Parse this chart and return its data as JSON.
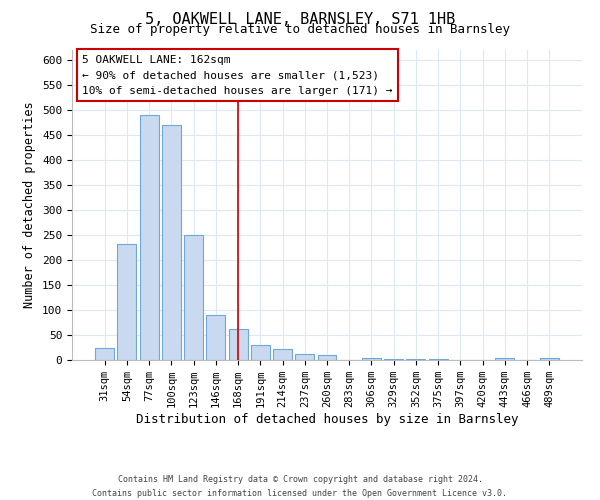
{
  "title": "5, OAKWELL LANE, BARNSLEY, S71 1HB",
  "subtitle": "Size of property relative to detached houses in Barnsley",
  "xlabel": "Distribution of detached houses by size in Barnsley",
  "ylabel": "Number of detached properties",
  "bar_labels": [
    "31sqm",
    "54sqm",
    "77sqm",
    "100sqm",
    "123sqm",
    "146sqm",
    "168sqm",
    "191sqm",
    "214sqm",
    "237sqm",
    "260sqm",
    "283sqm",
    "306sqm",
    "329sqm",
    "352sqm",
    "375sqm",
    "397sqm",
    "420sqm",
    "443sqm",
    "466sqm",
    "489sqm"
  ],
  "bar_values": [
    25,
    232,
    490,
    470,
    250,
    90,
    63,
    30,
    22,
    13,
    10,
    0,
    5,
    2,
    2,
    2,
    0,
    0,
    5,
    0,
    5
  ],
  "bar_color": "#c9d9f0",
  "bar_edge_color": "#6fa8d6",
  "vline_x_index": 6,
  "vline_color": "#cc0000",
  "annotation_title": "5 OAKWELL LANE: 162sqm",
  "annotation_line1": "← 90% of detached houses are smaller (1,523)",
  "annotation_line2": "10% of semi-detached houses are larger (171) →",
  "annotation_box_color": "white",
  "annotation_box_edge": "#cc0000",
  "ylim": [
    0,
    620
  ],
  "yticks": [
    0,
    50,
    100,
    150,
    200,
    250,
    300,
    350,
    400,
    450,
    500,
    550,
    600
  ],
  "footer1": "Contains HM Land Registry data © Crown copyright and database right 2024.",
  "footer2": "Contains public sector information licensed under the Open Government Licence v3.0.",
  "bg_color": "#ffffff",
  "plot_bg_color": "#ffffff",
  "grid_color": "#dde8f5"
}
